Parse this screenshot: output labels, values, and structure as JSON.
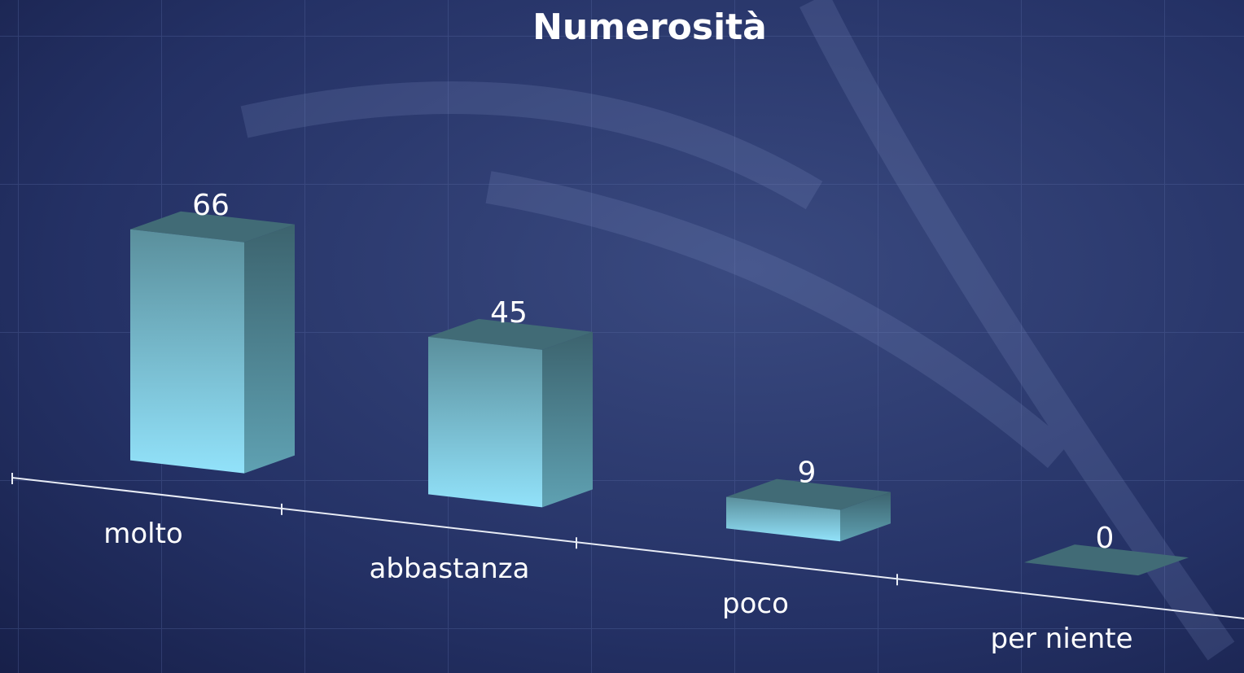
{
  "chart_data": {
    "type": "bar3d",
    "title": "Numerosità",
    "categories": [
      "molto",
      "abbastanza",
      "poco",
      "per niente"
    ],
    "values": [
      66,
      45,
      9,
      0
    ],
    "color": "#8fdcf5"
  }
}
